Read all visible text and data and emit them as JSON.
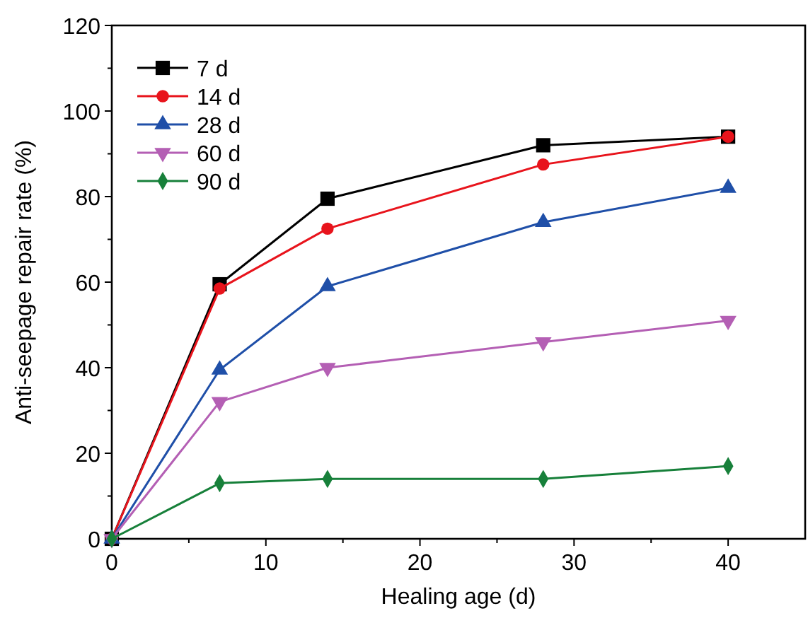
{
  "chart_data": {
    "type": "line",
    "xlabel": "Healing age (d)",
    "ylabel": "Anti-seepage repair rate (%)",
    "x": [
      0,
      7,
      14,
      28,
      40
    ],
    "xlim": [
      0,
      45
    ],
    "xticks": [
      0,
      10,
      20,
      30,
      40
    ],
    "ylim": [
      0,
      120
    ],
    "yticks": [
      0,
      20,
      40,
      60,
      80,
      100,
      120
    ],
    "legend": "top left",
    "grid": false,
    "series": [
      {
        "name": "7 d",
        "color": "#000000",
        "marker": "square",
        "values": [
          0,
          59.5,
          79.5,
          92,
          94
        ]
      },
      {
        "name": "14 d",
        "color": "#e8141c",
        "marker": "circle",
        "values": [
          0,
          58.5,
          72.5,
          87.5,
          94
        ]
      },
      {
        "name": "28 d",
        "color": "#1f4fa8",
        "marker": "triangle",
        "values": [
          0,
          39.5,
          59,
          74,
          82
        ]
      },
      {
        "name": "60 d",
        "color": "#b45fb4",
        "marker": "triangle-down",
        "values": [
          0,
          32,
          40,
          46,
          51
        ]
      },
      {
        "name": "90 d",
        "color": "#17803a",
        "marker": "diamond",
        "values": [
          0,
          13,
          14,
          14,
          17
        ]
      }
    ]
  }
}
